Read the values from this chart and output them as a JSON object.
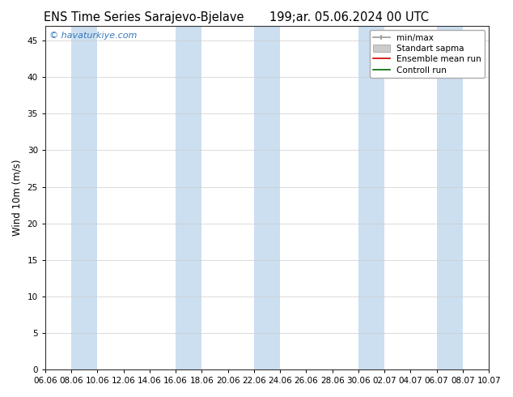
{
  "title_left": "ENS Time Series Sarajevo-Bjelave",
  "title_right": "199;ar. 05.06.2024 00 UTC",
  "ylabel": "Wind 10m (m/s)",
  "ylim": [
    0,
    47
  ],
  "yticks": [
    0,
    5,
    10,
    15,
    20,
    25,
    30,
    35,
    40,
    45
  ],
  "bg_color": "#ffffff",
  "plot_bg": "#ffffff",
  "band_color": "#ccdff0",
  "watermark": "© havaturkiye.com",
  "watermark_color": "#3377bb",
  "legend_items": [
    {
      "label": "min/max",
      "color": "#999999",
      "lw": 1.2
    },
    {
      "label": "Standart sapma",
      "color": "#cccccc",
      "lw": 8
    },
    {
      "label": "Ensemble mean run",
      "color": "#cc0000",
      "lw": 1.2
    },
    {
      "label": "Controll run",
      "color": "#006600",
      "lw": 1.2
    }
  ],
  "xtick_labels": [
    "06.06",
    "08.06",
    "10.06",
    "12.06",
    "14.06",
    "16.06",
    "18.06",
    "20.06",
    "22.06",
    "24.06",
    "26.06",
    "28.06",
    "30.06",
    "02.07",
    "04.07",
    "06.07",
    "08.07",
    "10.07"
  ],
  "num_ticks": 18,
  "xlim_start": 0,
  "xlim_end": 34,
  "band_pairs": [
    [
      2,
      4
    ],
    [
      10,
      12
    ],
    [
      16,
      18
    ],
    [
      24,
      26
    ],
    [
      30,
      32
    ]
  ],
  "grid_color": "#cccccc",
  "title_fontsize": 10.5,
  "tick_fontsize": 7.5,
  "ylabel_fontsize": 8.5,
  "legend_fontsize": 7.5
}
